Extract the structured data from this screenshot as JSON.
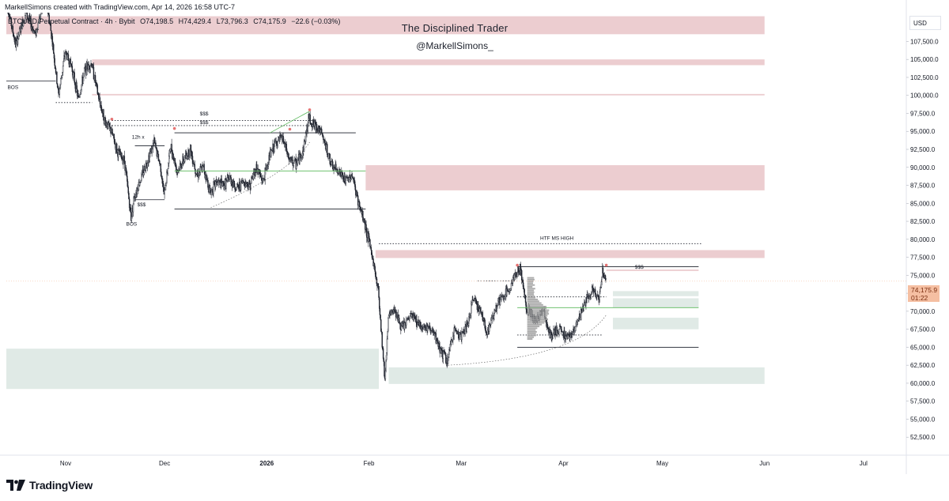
{
  "header": {
    "credit": "MarkellSimons created with TradingView.com, Apr 14, 2026 16:58 UTC-7",
    "symbol": "BTCUSD Perpetual Contract · 4h · Bybit",
    "open": "O74,198.5",
    "high": "H74,429.4",
    "low": "L73,796.3",
    "close": "C74,175.9",
    "change": "−22.6 (−0.03%)"
  },
  "watermark": {
    "title": "The Disciplined Trader",
    "handle": "@MarkellSimons_"
  },
  "price_scale": {
    "currency": "USD",
    "last_price": "74,175.9",
    "countdown": "01:22"
  },
  "footer": {
    "brand": "TradingView"
  },
  "colors": {
    "supply_zone": "#e9c4c8",
    "demand_zone": "#dde8e3",
    "candle": "#1e222d",
    "green_line": "#5cb85c",
    "red_marker": "#e57373",
    "price_tag": "#f5bfa2"
  },
  "chart_data": {
    "type": "candlestick",
    "timeframe": "4h",
    "ylim": [
      50000,
      111500
    ],
    "y_ticks": [
      52500,
      55000,
      57500,
      60000,
      62500,
      65000,
      67500,
      70000,
      72500,
      75000,
      77500,
      80000,
      82500,
      85000,
      87500,
      90000,
      92500,
      95000,
      97500,
      100000,
      102500,
      105000,
      107500
    ],
    "y_tick_labels": [
      "52,500.0",
      "55,000.0",
      "57,500.0",
      "60,000.0",
      "62,500.0",
      "65,000.0",
      "67,500.0",
      "70,000.0",
      "72,500.0",
      "75,000.0",
      "77,500.0",
      "80,000.0",
      "82,500.0",
      "85,000.0",
      "87,500.0",
      "90,000.0",
      "92,500.0",
      "95,000.0",
      "97,500.0",
      "100,000.0",
      "102,500.0",
      "105,000.0",
      "107,500.0"
    ],
    "xlim": [
      "2025-10-14",
      "2026-07-14"
    ],
    "x_ticks": [
      {
        "date": "2025-11-01",
        "label": "Nov"
      },
      {
        "date": "2025-12-01",
        "label": "Dec"
      },
      {
        "date": "2026-01-01",
        "label": "2026"
      },
      {
        "date": "2026-02-01",
        "label": "Feb"
      },
      {
        "date": "2026-03-01",
        "label": "Mar"
      },
      {
        "date": "2026-04-01",
        "label": "Apr"
      },
      {
        "date": "2026-05-01",
        "label": "May"
      },
      {
        "date": "2026-06-01",
        "label": "Jun"
      },
      {
        "date": "2026-07-01",
        "label": "Jul"
      }
    ],
    "price_path": [
      [
        "2025-10-14",
        113500
      ],
      [
        "2025-10-17",
        107000
      ],
      [
        "2025-10-20",
        111500
      ],
      [
        "2025-10-23",
        108500
      ],
      [
        "2025-10-26",
        114000
      ],
      [
        "2025-10-28",
        108000
      ],
      [
        "2025-10-30",
        100000
      ],
      [
        "2025-11-01",
        106000
      ],
      [
        "2025-11-03",
        104000
      ],
      [
        "2025-11-05",
        99500
      ],
      [
        "2025-11-07",
        103500
      ],
      [
        "2025-11-09",
        104500
      ],
      [
        "2025-11-11",
        100000
      ],
      [
        "2025-11-13",
        96500
      ],
      [
        "2025-11-15",
        95000
      ],
      [
        "2025-11-17",
        92000
      ],
      [
        "2025-11-19",
        91000
      ],
      [
        "2025-11-21",
        83000
      ],
      [
        "2025-11-22",
        86000
      ],
      [
        "2025-11-24",
        88500
      ],
      [
        "2025-11-26",
        91000
      ],
      [
        "2025-11-28",
        93500
      ],
      [
        "2025-11-30",
        90000
      ],
      [
        "2025-12-01",
        86000
      ],
      [
        "2025-12-03",
        93000
      ],
      [
        "2025-12-05",
        89500
      ],
      [
        "2025-12-07",
        91000
      ],
      [
        "2025-12-09",
        92500
      ],
      [
        "2025-12-11",
        89000
      ],
      [
        "2025-12-13",
        90000
      ],
      [
        "2025-12-15",
        86500
      ],
      [
        "2025-12-17",
        88000
      ],
      [
        "2025-12-19",
        87500
      ],
      [
        "2025-12-21",
        88500
      ],
      [
        "2025-12-23",
        87000
      ],
      [
        "2025-12-25",
        88000
      ],
      [
        "2025-12-27",
        87500
      ],
      [
        "2025-12-29",
        90000
      ],
      [
        "2025-12-31",
        88000
      ],
      [
        "2026-01-02",
        91500
      ],
      [
        "2026-01-04",
        93500
      ],
      [
        "2026-01-06",
        94000
      ],
      [
        "2026-01-08",
        91000
      ],
      [
        "2026-01-10",
        90500
      ],
      [
        "2026-01-12",
        92000
      ],
      [
        "2026-01-14",
        97000
      ],
      [
        "2026-01-15",
        96000
      ],
      [
        "2026-01-17",
        95500
      ],
      [
        "2026-01-19",
        93000
      ],
      [
        "2026-01-21",
        90000
      ],
      [
        "2026-01-23",
        89500
      ],
      [
        "2026-01-25",
        88000
      ],
      [
        "2026-01-27",
        89000
      ],
      [
        "2026-01-29",
        85000
      ],
      [
        "2026-01-31",
        82000
      ],
      [
        "2026-02-02",
        78000
      ],
      [
        "2026-02-04",
        73000
      ],
      [
        "2026-02-06",
        60500
      ],
      [
        "2026-02-07",
        69000
      ],
      [
        "2026-02-09",
        70500
      ],
      [
        "2026-02-11",
        67500
      ],
      [
        "2026-02-14",
        69500
      ],
      [
        "2026-02-17",
        68000
      ],
      [
        "2026-02-20",
        67500
      ],
      [
        "2026-02-23",
        64500
      ],
      [
        "2026-02-25",
        63000
      ],
      [
        "2026-02-27",
        67500
      ],
      [
        "2026-03-01",
        66500
      ],
      [
        "2026-03-03",
        68000
      ],
      [
        "2026-03-05",
        72000
      ],
      [
        "2026-03-07",
        70000
      ],
      [
        "2026-03-09",
        67000
      ],
      [
        "2026-03-12",
        71000
      ],
      [
        "2026-03-15",
        72500
      ],
      [
        "2026-03-17",
        74500
      ],
      [
        "2026-03-19",
        76000
      ],
      [
        "2026-03-21",
        70500
      ],
      [
        "2026-03-24",
        68500
      ],
      [
        "2026-03-26",
        70500
      ],
      [
        "2026-03-28",
        66500
      ],
      [
        "2026-03-31",
        67500
      ],
      [
        "2026-04-02",
        66500
      ],
      [
        "2026-04-04",
        67000
      ],
      [
        "2026-04-06",
        69000
      ],
      [
        "2026-04-08",
        71500
      ],
      [
        "2026-04-10",
        73000
      ],
      [
        "2026-04-12",
        71500
      ],
      [
        "2026-04-13",
        76000
      ],
      [
        "2026-04-14",
        74176
      ]
    ],
    "zones": [
      {
        "kind": "supply",
        "from": "2025-10-14",
        "to": "2026-06-01",
        "low": 108500,
        "high": 111000
      },
      {
        "kind": "supply",
        "from": "2025-11-09",
        "to": "2026-06-01",
        "low": 104200,
        "high": 105000
      },
      {
        "kind": "supply",
        "from": "2025-11-09",
        "to": "2026-06-01",
        "low": 100000,
        "high": 100200
      },
      {
        "kind": "supply",
        "from": "2026-01-31",
        "to": "2026-06-01",
        "low": 86800,
        "high": 90300
      },
      {
        "kind": "supply",
        "from": "2026-02-03",
        "to": "2026-06-01",
        "low": 77400,
        "high": 78500
      },
      {
        "kind": "supply",
        "from": "2026-04-14",
        "to": "2026-05-12",
        "low": 75600,
        "high": 75800
      },
      {
        "kind": "demand",
        "from": "2025-10-14",
        "to": "2026-02-04",
        "low": 59200,
        "high": 64800
      },
      {
        "kind": "demand",
        "from": "2026-02-07",
        "to": "2026-06-01",
        "low": 59900,
        "high": 62200
      },
      {
        "kind": "demand",
        "from": "2026-04-16",
        "to": "2026-05-12",
        "low": 72100,
        "high": 72800
      },
      {
        "kind": "demand",
        "from": "2026-04-16",
        "to": "2026-05-12",
        "low": 70500,
        "high": 71800
      },
      {
        "kind": "demand",
        "from": "2026-04-16",
        "to": "2026-05-12",
        "low": 67500,
        "high": 69100
      }
    ],
    "levels": [
      {
        "price": 102000,
        "from": "2025-10-14",
        "to": "2025-10-29",
        "style": "solid"
      },
      {
        "price": 99000,
        "from": "2025-10-29",
        "to": "2025-11-09",
        "style": "dotted"
      },
      {
        "price": 96500,
        "from": "2025-11-15",
        "to": "2026-01-15",
        "style": "dotted"
      },
      {
        "price": 95800,
        "from": "2025-11-15",
        "to": "2026-01-15",
        "style": "dotted"
      },
      {
        "price": 94800,
        "from": "2025-12-04",
        "to": "2026-01-28",
        "style": "solid"
      },
      {
        "price": 93000,
        "from": "2025-11-22",
        "to": "2025-12-01",
        "style": "solid"
      },
      {
        "price": 89500,
        "from": "2025-12-04",
        "to": "2026-01-31",
        "style": "green"
      },
      {
        "price": 85500,
        "from": "2025-11-22",
        "to": "2025-12-01",
        "style": "solid"
      },
      {
        "price": 84200,
        "from": "2025-12-04",
        "to": "2026-01-31",
        "style": "solid"
      },
      {
        "price": 79400,
        "from": "2026-02-04",
        "to": "2026-05-13",
        "style": "dotted"
      },
      {
        "price": 76200,
        "from": "2026-03-18",
        "to": "2026-05-12",
        "style": "solid"
      },
      {
        "price": 74200,
        "from": "2026-03-06",
        "to": "2026-03-18",
        "style": "dotted"
      },
      {
        "price": 72000,
        "from": "2026-03-18",
        "to": "2026-04-14",
        "style": "dotted"
      },
      {
        "price": 70500,
        "from": "2026-03-18",
        "to": "2026-05-12",
        "style": "green"
      },
      {
        "price": 66700,
        "from": "2026-03-18",
        "to": "2026-04-13",
        "style": "dotted"
      },
      {
        "price": 65000,
        "from": "2026-03-18",
        "to": "2026-05-12",
        "style": "solid"
      }
    ],
    "annotations": [
      {
        "text": "BOS",
        "date": "2025-10-16",
        "price": 100900
      },
      {
        "text": "$$$",
        "date": "2025-12-13",
        "price": 97200
      },
      {
        "text": "$$$",
        "date": "2025-12-13",
        "price": 96000
      },
      {
        "text": "12h x",
        "date": "2025-11-23",
        "price": 94000
      },
      {
        "text": "$$$",
        "date": "2025-11-24",
        "price": 84600
      },
      {
        "text": "BOS",
        "date": "2025-11-21",
        "price": 81900
      },
      {
        "text": "HTF MS HIGH",
        "date": "2026-03-30",
        "price": 79900
      },
      {
        "text": "$$$",
        "date": "2026-04-24",
        "price": 75900
      }
    ]
  }
}
